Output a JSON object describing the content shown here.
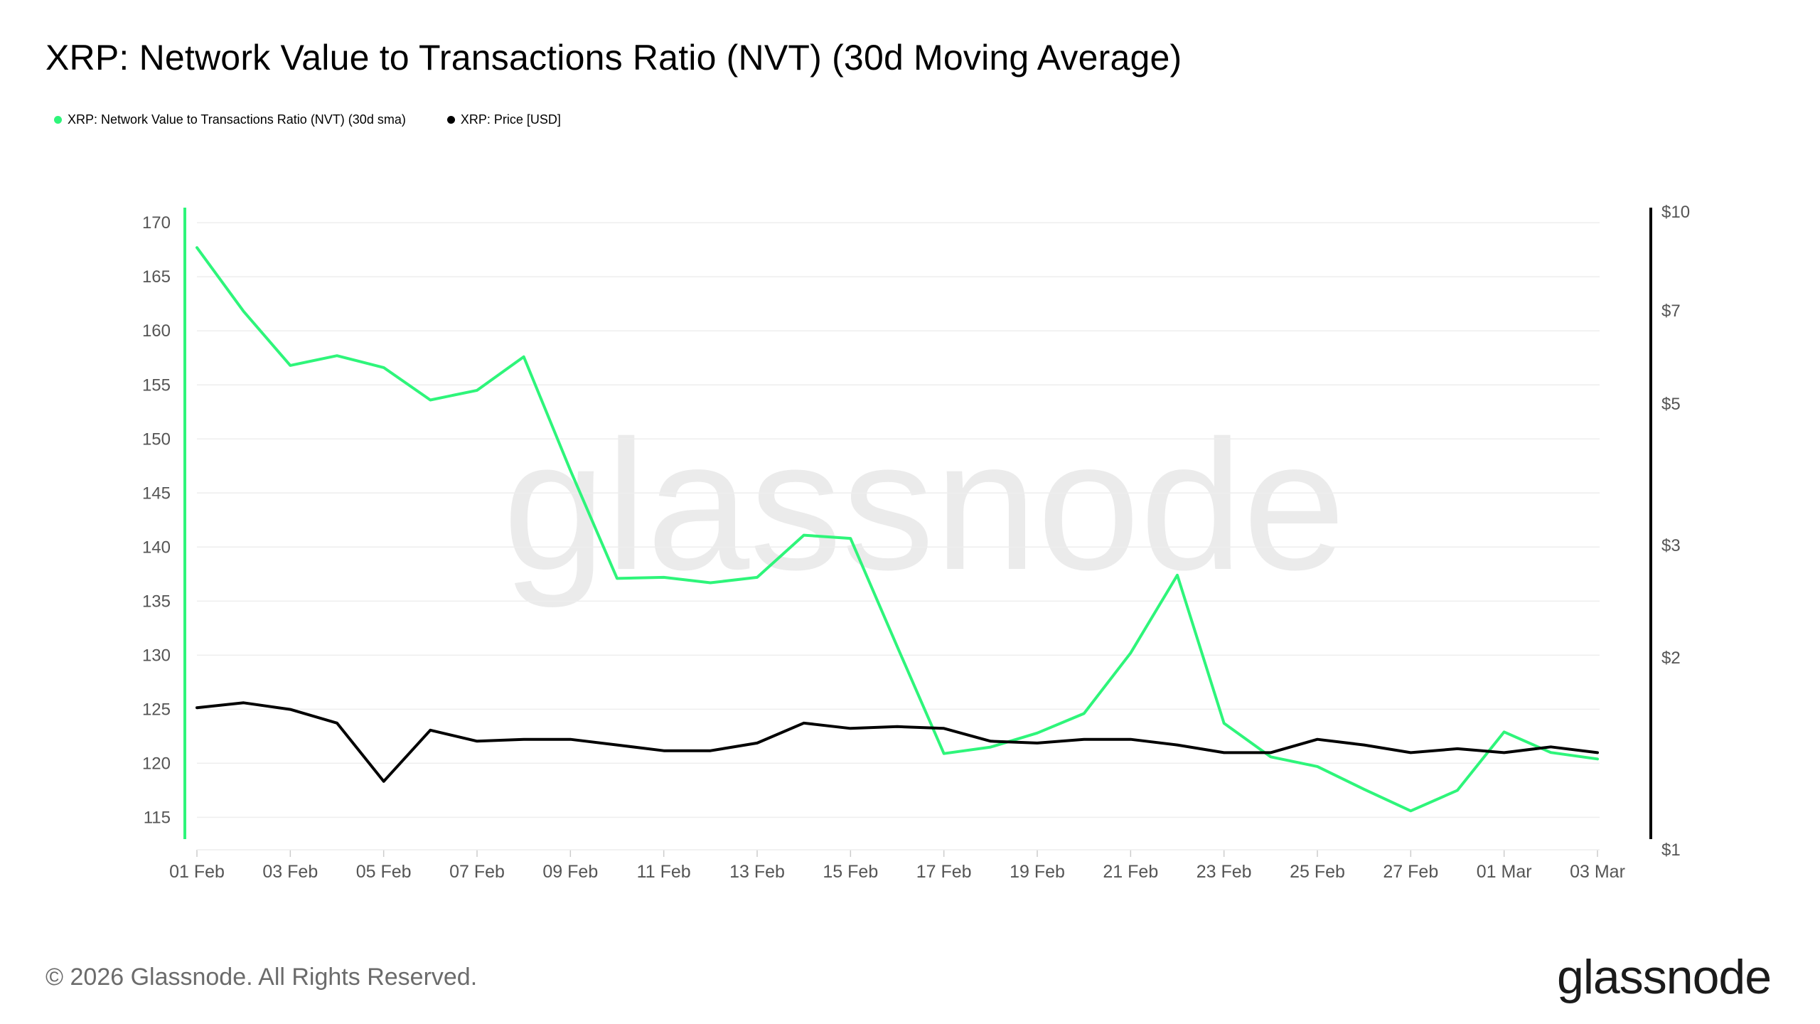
{
  "title": "XRP: Network Value to Transactions Ratio (NVT) (30d Moving Average)",
  "legend": [
    {
      "label": "XRP: Network Value to Transactions Ratio (NVT) (30d sma)",
      "color": "#2ef57a"
    },
    {
      "label": "XRP: Price [USD]",
      "color": "#000000"
    }
  ],
  "footer": {
    "copyright": "© 2026 Glassnode. All Rights Reserved.",
    "logo": "glassnode"
  },
  "watermark": "glassnode",
  "chart_data": {
    "type": "line",
    "x": [
      "01 Feb",
      "02 Feb",
      "03 Feb",
      "04 Feb",
      "05 Feb",
      "06 Feb",
      "07 Feb",
      "08 Feb",
      "09 Feb",
      "10 Feb",
      "11 Feb",
      "12 Feb",
      "13 Feb",
      "14 Feb",
      "15 Feb",
      "16 Feb",
      "17 Feb",
      "18 Feb",
      "19 Feb",
      "20 Feb",
      "21 Feb",
      "22 Feb",
      "23 Feb",
      "24 Feb",
      "25 Feb",
      "26 Feb",
      "27 Feb",
      "28 Feb",
      "01 Mar",
      "02 Mar",
      "03 Mar"
    ],
    "x_tick_labels": [
      "01 Feb",
      "03 Feb",
      "05 Feb",
      "07 Feb",
      "09 Feb",
      "11 Feb",
      "13 Feb",
      "15 Feb",
      "17 Feb",
      "19 Feb",
      "21 Feb",
      "23 Feb",
      "25 Feb",
      "27 Feb",
      "01 Mar",
      "03 Mar"
    ],
    "left_axis": {
      "min": 112,
      "max": 171,
      "ticks": [
        170,
        165,
        160,
        155,
        150,
        145,
        140,
        135,
        130,
        125,
        120,
        115
      ],
      "color": "#2ef57a"
    },
    "right_axis": {
      "scale": "log",
      "min": 1,
      "max": 10,
      "ticks": [
        {
          "value": 10,
          "label": "$10"
        },
        {
          "value": 7,
          "label": "$7"
        },
        {
          "value": 5,
          "label": "$5"
        },
        {
          "value": 3,
          "label": "$3"
        },
        {
          "value": 2,
          "label": "$2"
        },
        {
          "value": 1,
          "label": "$1"
        }
      ],
      "color": "#000000"
    },
    "grid": true,
    "series": [
      {
        "name": "XRP: Network Value to Transactions Ratio (NVT) (30d sma)",
        "axis": "left",
        "color": "#2ef57a",
        "values": [
          167.7,
          161.8,
          156.8,
          157.7,
          156.6,
          153.6,
          154.5,
          157.6,
          147.1,
          137.1,
          137.2,
          136.7,
          137.2,
          141.1,
          140.8,
          130.8,
          120.9,
          121.5,
          122.8,
          124.6,
          130.2,
          137.4,
          123.7,
          120.6,
          119.7,
          117.6,
          115.6,
          117.5,
          122.9,
          121.0,
          120.4
        ]
      },
      {
        "name": "XRP: Price [USD]",
        "axis": "right",
        "color": "#000000",
        "values": [
          1.67,
          1.7,
          1.66,
          1.58,
          1.28,
          1.54,
          1.48,
          1.49,
          1.49,
          1.46,
          1.43,
          1.43,
          1.47,
          1.58,
          1.55,
          1.56,
          1.55,
          1.48,
          1.47,
          1.49,
          1.49,
          1.46,
          1.42,
          1.42,
          1.49,
          1.46,
          1.42,
          1.44,
          1.42,
          1.45,
          1.42
        ]
      }
    ]
  }
}
